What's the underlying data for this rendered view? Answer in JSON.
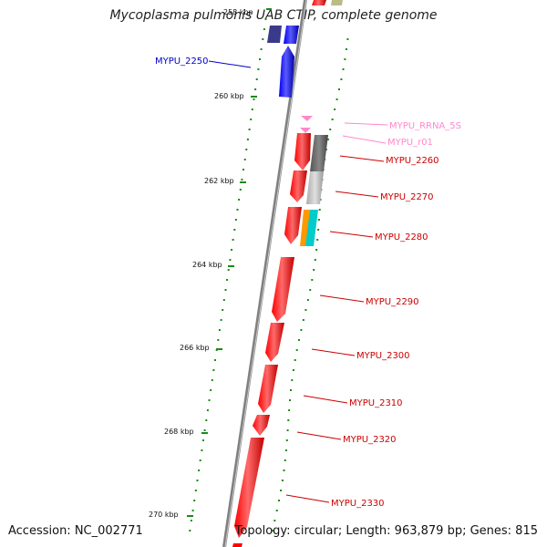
{
  "title": "Mycoplasma pulmonis UAB CTIP, complete genome",
  "footer": {
    "accession": "Accession: NC_002771",
    "summary": "Topology: circular; Length: 963,879 bp; Genes: 815"
  },
  "colors": {
    "backbone": "#7a7a7a",
    "gc_ticks": "#1a8a1a",
    "gene_red": "#ff0000",
    "gene_blue": "#0000ff",
    "gene_dark_blue": "#3a3a8a",
    "rna_pink": "#ff88cc",
    "gray": "#666666",
    "light_gray": "#bbbbbb",
    "orange": "#ff9900",
    "cyan": "#00cccc",
    "olive": "#bbbb88",
    "label_red": "#cc0000",
    "label_blue": "#0000cc",
    "label_pink": "#ff88cc"
  },
  "scale_labels": [
    "258 kbp",
    "260 kbp",
    "262 kbp",
    "264 kbp",
    "266 kbp",
    "268 kbp",
    "270 kbp"
  ],
  "feature_labels": [
    {
      "text": "MYPU_2250",
      "color": "blue"
    },
    {
      "text": "MYPU_RRNA_5S",
      "color": "pink"
    },
    {
      "text": "MYPU_r01",
      "color": "pink"
    },
    {
      "text": "MYPU_2260",
      "color": "red"
    },
    {
      "text": "MYPU_2270",
      "color": "red"
    },
    {
      "text": "MYPU_2280",
      "color": "red"
    },
    {
      "text": "MYPU_2290",
      "color": "red"
    },
    {
      "text": "MYPU_2300",
      "color": "red"
    },
    {
      "text": "MYPU_2310",
      "color": "red"
    },
    {
      "text": "MYPU_2320",
      "color": "red"
    },
    {
      "text": "MYPU_2330",
      "color": "red"
    }
  ]
}
